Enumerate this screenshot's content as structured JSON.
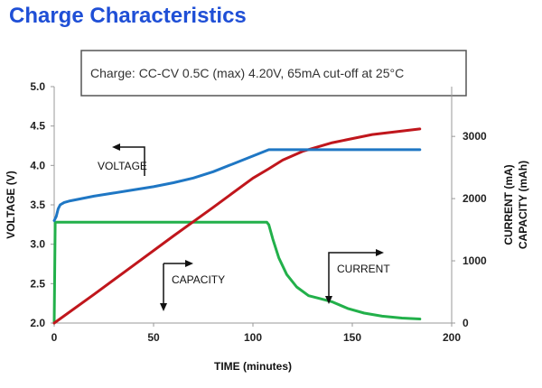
{
  "title": "Charge Characteristics",
  "chart_data": {
    "type": "line",
    "annotation": "Charge:   CC-CV 0.5C (max) 4.20V, 65mA cut-off at 25°C",
    "xlabel": "TIME (minutes)",
    "ylabel_left": "VOLTAGE (V)",
    "ylabel_right_1": "CURRENT (mA)",
    "ylabel_right_2": "CAPACITY (mAh)",
    "xlim": [
      0,
      200
    ],
    "ylim_left": [
      2.0,
      5.0
    ],
    "ylim_right": [
      0,
      3800
    ],
    "x_ticks": [
      "0",
      "50",
      "100",
      "150",
      "200"
    ],
    "y_left_ticks": [
      "2.0",
      "2.5",
      "3.0",
      "3.5",
      "4.0",
      "4.5",
      "5.0"
    ],
    "y_right_ticks": [
      "0",
      "1000",
      "2000",
      "3000"
    ],
    "series": [
      {
        "name": "VOLTAGE",
        "axis": "left",
        "color": "#1f77c4",
        "x": [
          0,
          1,
          2,
          3,
          5,
          8,
          12,
          20,
          30,
          40,
          50,
          60,
          70,
          80,
          90,
          100,
          105,
          108,
          120,
          140,
          160,
          184
        ],
        "y": [
          3.3,
          3.35,
          3.45,
          3.5,
          3.53,
          3.55,
          3.57,
          3.61,
          3.65,
          3.69,
          3.73,
          3.78,
          3.84,
          3.92,
          4.02,
          4.12,
          4.17,
          4.2,
          4.2,
          4.2,
          4.2,
          4.2
        ]
      },
      {
        "name": "CAPACITY",
        "axis": "right",
        "color": "#c0161c",
        "x": [
          0,
          20,
          40,
          60,
          80,
          100,
          108,
          115,
          125,
          140,
          160,
          184
        ],
        "y": [
          0,
          460,
          930,
          1400,
          1860,
          2330,
          2480,
          2620,
          2760,
          2900,
          3030,
          3120
        ]
      },
      {
        "name": "CURRENT",
        "axis": "right",
        "color": "#22b04a",
        "x": [
          0,
          0.5,
          1,
          107,
          108,
          110,
          113,
          117,
          122,
          128,
          134,
          140,
          148,
          156,
          165,
          175,
          184
        ],
        "y": [
          0,
          1620,
          1620,
          1620,
          1580,
          1350,
          1050,
          780,
          580,
          440,
          390,
          340,
          230,
          160,
          110,
          80,
          65
        ]
      }
    ],
    "labels": [
      {
        "text": "VOLTAGE",
        "series": "VOLTAGE"
      },
      {
        "text": "CAPACITY",
        "series": "CAPACITY"
      },
      {
        "text": "CURRENT",
        "series": "CURRENT"
      }
    ]
  }
}
